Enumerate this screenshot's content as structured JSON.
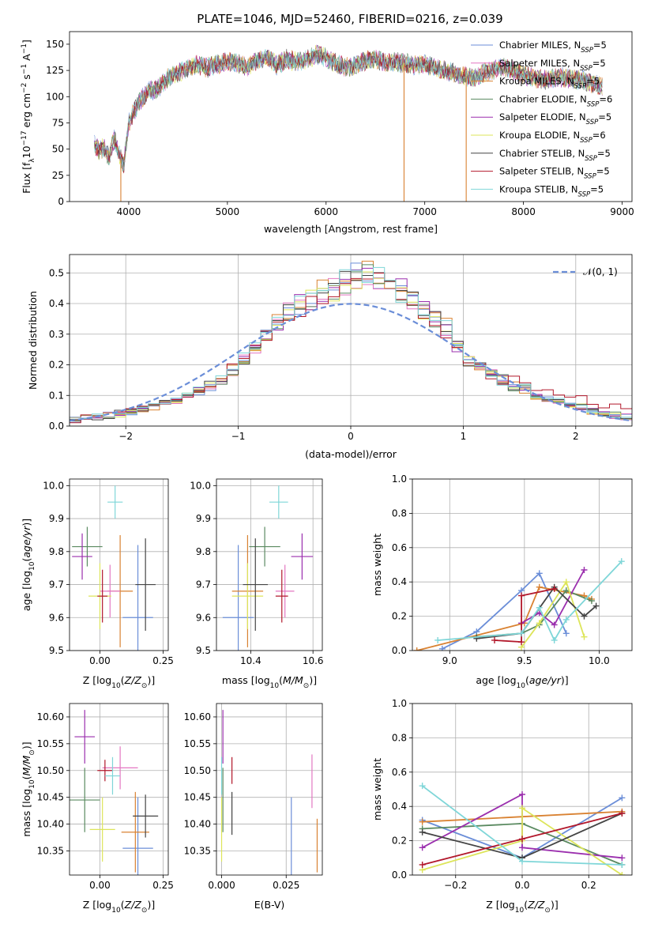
{
  "figure_title": "PLATE=1046, MJD=52460, FIBERID=0216, z=0.039",
  "legend": [
    {
      "name": "Chabrier MILES, N",
      "sub": "SSP",
      "tail": "=5",
      "color": "#6b8ed8"
    },
    {
      "name": "Salpeter MILES, N",
      "sub": "SSP",
      "tail": "=5",
      "color": "#e377c2"
    },
    {
      "name": "Kroupa MILES, N",
      "sub": "SSP",
      "tail": "=5",
      "color": "#d98232"
    },
    {
      "name": "Chabrier ELODIE, N",
      "sub": "SSP",
      "tail": "=6",
      "color": "#5a8a60"
    },
    {
      "name": "Salpeter ELODIE, N",
      "sub": "SSP",
      "tail": "=5",
      "color": "#9b2fae"
    },
    {
      "name": "Kroupa ELODIE, N",
      "sub": "SSP",
      "tail": "=6",
      "color": "#dde55a"
    },
    {
      "name": "Chabrier STELIB, N",
      "sub": "SSP",
      "tail": "=5",
      "color": "#444444"
    },
    {
      "name": "Salpeter STELIB, N",
      "sub": "SSP",
      "tail": "=5",
      "color": "#b2182b"
    },
    {
      "name": "Kroupa STELIB, N",
      "sub": "SSP",
      "tail": "=5",
      "color": "#7fd6d8"
    }
  ],
  "normal_label": "𝒩(0, 1)",
  "chart_data": [
    {
      "id": "spectrum",
      "type": "line",
      "xlabel": "wavelength [Angstrom, rest frame]",
      "ylabel_parts": [
        "Flux [f",
        "λ",
        "10",
        "−17",
        " erg cm",
        "−2",
        " s",
        "−1",
        " A",
        "−1",
        "]"
      ],
      "xlim": [
        3400,
        9100
      ],
      "ylim": [
        0,
        162
      ],
      "xticks": [
        4000,
        5000,
        6000,
        7000,
        8000,
        9000
      ],
      "yticks": [
        0,
        25,
        50,
        75,
        100,
        125,
        150
      ],
      "grid": false,
      "envelope": {
        "x": [
          3650,
          3700,
          3750,
          3800,
          3850,
          3900,
          3950,
          4000,
          4100,
          4200,
          4300,
          4400,
          4500,
          4600,
          4700,
          4800,
          4900,
          5000,
          5100,
          5200,
          5300,
          5400,
          5500,
          5600,
          5700,
          5800,
          5900,
          6000,
          6100,
          6200,
          6300,
          6400,
          6500,
          6600,
          6700,
          6800,
          6900,
          7000,
          7100,
          7200,
          7300,
          7400,
          7500,
          7600,
          7700,
          7800,
          7900,
          8000,
          8100,
          8200,
          8300,
          8400,
          8500,
          8600,
          8700,
          8800
        ],
        "y": [
          55,
          48,
          52,
          42,
          60,
          45,
          35,
          75,
          95,
          105,
          108,
          118,
          122,
          128,
          130,
          128,
          131,
          133,
          132,
          128,
          134,
          138,
          130,
          136,
          133,
          135,
          140,
          137,
          132,
          128,
          130,
          134,
          136,
          132,
          133,
          132,
          130,
          131,
          128,
          125,
          122,
          120,
          118,
          123,
          126,
          128,
          125,
          121,
          118,
          116,
          117,
          119,
          117,
          116,
          112,
          110
        ]
      },
      "dropouts": [
        {
          "x": 3920,
          "color": "#d98232"
        },
        {
          "x": 6790,
          "color": "#d98232"
        },
        {
          "x": 7420,
          "color": "#d98232"
        }
      ]
    },
    {
      "id": "residuals",
      "type": "histogram",
      "xlabel": "(data-model)/error",
      "ylabel": "Normed distribution",
      "xlim": [
        -2.5,
        2.5
      ],
      "ylim": [
        0,
        0.56
      ],
      "xticks": [
        -2,
        -1,
        0,
        1,
        2
      ],
      "yticks": [
        0.0,
        0.1,
        0.2,
        0.3,
        0.4,
        0.5
      ],
      "grid": true,
      "bins": [
        -2.5,
        -2.4,
        -2.3,
        -2.2,
        -2.1,
        -2.0,
        -1.9,
        -1.8,
        -1.7,
        -1.6,
        -1.5,
        -1.4,
        -1.3,
        -1.2,
        -1.1,
        -1.0,
        -0.9,
        -0.8,
        -0.7,
        -0.6,
        -0.5,
        -0.4,
        -0.3,
        -0.2,
        -0.1,
        0.0,
        0.1,
        0.2,
        0.3,
        0.4,
        0.5,
        0.6,
        0.7,
        0.8,
        0.9,
        1.0,
        1.1,
        1.2,
        1.3,
        1.4,
        1.5,
        1.6,
        1.7,
        1.8,
        1.9,
        2.0,
        2.1,
        2.2,
        2.3,
        2.4,
        2.5
      ],
      "base_values": [
        0.02,
        0.025,
        0.03,
        0.035,
        0.04,
        0.045,
        0.055,
        0.065,
        0.075,
        0.085,
        0.1,
        0.115,
        0.13,
        0.15,
        0.18,
        0.22,
        0.26,
        0.3,
        0.34,
        0.37,
        0.39,
        0.41,
        0.43,
        0.45,
        0.47,
        0.49,
        0.49,
        0.48,
        0.46,
        0.44,
        0.42,
        0.38,
        0.35,
        0.32,
        0.26,
        0.22,
        0.19,
        0.17,
        0.15,
        0.13,
        0.12,
        0.1,
        0.09,
        0.08,
        0.07,
        0.06,
        0.05,
        0.04,
        0.035,
        0.03
      ],
      "normal_curve": {
        "mean": 0,
        "sigma": 1,
        "color": "#6b8ed8"
      }
    },
    {
      "id": "age-vs-metallicity",
      "type": "errorbar",
      "xlabel": "Z [log10(Z/Z⊙)]",
      "ylabel": "age [log10(age/yr)]",
      "xlim": [
        -0.12,
        0.27
      ],
      "ylim": [
        9.5,
        10.02
      ],
      "xticks": [
        0.0,
        0.25
      ],
      "yticks": [
        9.5,
        9.6,
        9.7,
        9.8,
        9.9,
        10.0
      ],
      "grid": true,
      "points": [
        {
          "x": 0.15,
          "y": 9.6,
          "xerr": 0.06,
          "yerr": 0.22,
          "color": "#6b8ed8"
        },
        {
          "x": 0.08,
          "y": 9.68,
          "xerr": 0.05,
          "yerr": 0.17,
          "color": "#d98232"
        },
        {
          "x": 0.04,
          "y": 9.68,
          "xerr": 0.04,
          "yerr": 0.08,
          "color": "#e377c2"
        },
        {
          "x": -0.05,
          "y": 9.815,
          "xerr": 0.06,
          "yerr": 0.06,
          "color": "#5a8a60"
        },
        {
          "x": -0.07,
          "y": 9.785,
          "xerr": 0.04,
          "yerr": 0.07,
          "color": "#9b2fae"
        },
        {
          "x": 0.0,
          "y": 9.665,
          "xerr": 0.045,
          "yerr": 0.1,
          "color": "#dde55a"
        },
        {
          "x": 0.18,
          "y": 9.7,
          "xerr": 0.04,
          "yerr": 0.14,
          "color": "#444444"
        },
        {
          "x": 0.01,
          "y": 9.665,
          "xerr": 0.02,
          "yerr": 0.08,
          "color": "#b2182b"
        },
        {
          "x": 0.06,
          "y": 9.95,
          "xerr": 0.03,
          "yerr": 0.05,
          "color": "#7fd6d8"
        }
      ]
    },
    {
      "id": "age-vs-mass",
      "type": "errorbar",
      "xlabel": "mass [log10(M/M⊙)]",
      "ylabel": "",
      "xlim": [
        10.29,
        10.63
      ],
      "ylim": [
        9.5,
        10.02
      ],
      "xticks": [
        10.4,
        10.6
      ],
      "yticks": [
        9.5,
        9.6,
        9.7,
        9.8,
        9.9,
        10.0
      ],
      "grid": true,
      "points": [
        {
          "x": 10.36,
          "y": 9.6,
          "xerr": 0.05,
          "yerr": 0.22,
          "color": "#6b8ed8"
        },
        {
          "x": 10.39,
          "y": 9.68,
          "xerr": 0.05,
          "yerr": 0.17,
          "color": "#d98232"
        },
        {
          "x": 10.51,
          "y": 9.68,
          "xerr": 0.03,
          "yerr": 0.08,
          "color": "#e377c2"
        },
        {
          "x": 10.445,
          "y": 9.815,
          "xerr": 0.05,
          "yerr": 0.06,
          "color": "#5a8a60"
        },
        {
          "x": 10.565,
          "y": 9.785,
          "xerr": 0.035,
          "yerr": 0.07,
          "color": "#9b2fae"
        },
        {
          "x": 10.39,
          "y": 9.665,
          "xerr": 0.05,
          "yerr": 0.1,
          "color": "#dde55a"
        },
        {
          "x": 10.415,
          "y": 9.7,
          "xerr": 0.04,
          "yerr": 0.14,
          "color": "#444444"
        },
        {
          "x": 10.5,
          "y": 9.665,
          "xerr": 0.02,
          "yerr": 0.08,
          "color": "#b2182b"
        },
        {
          "x": 10.49,
          "y": 9.95,
          "xerr": 0.03,
          "yerr": 0.05,
          "color": "#7fd6d8"
        }
      ]
    },
    {
      "id": "mass-weight-vs-age",
      "type": "line",
      "xlabel": "age [log10(age/yr)]",
      "ylabel": "mass weight",
      "xlim": [
        8.75,
        10.22
      ],
      "ylim": [
        0,
        1.0
      ],
      "xticks": [
        9.0,
        9.5,
        10.0
      ],
      "yticks": [
        0.0,
        0.2,
        0.4,
        0.6,
        0.8,
        1.0
      ],
      "grid": true,
      "series": [
        {
          "color": "#6b8ed8",
          "x": [
            8.95,
            9.18,
            9.48,
            9.6,
            9.78
          ],
          "y": [
            0.01,
            0.11,
            0.35,
            0.45,
            0.1
          ]
        },
        {
          "color": "#d98232",
          "x": [
            8.78,
            9.5,
            9.6,
            9.9,
            9.95
          ],
          "y": [
            0.0,
            0.16,
            0.37,
            0.32,
            0.3
          ]
        },
        {
          "color": "#5a8a60",
          "x": [
            9.18,
            9.48,
            9.6,
            9.78,
            9.95
          ],
          "y": [
            0.08,
            0.1,
            0.15,
            0.35,
            0.29
          ]
        },
        {
          "color": "#9b2fae",
          "x": [
            9.48,
            9.6,
            9.7,
            9.9
          ],
          "y": [
            0.16,
            0.22,
            0.15,
            0.47
          ]
        },
        {
          "color": "#dde55a",
          "x": [
            9.48,
            9.6,
            9.78,
            9.9
          ],
          "y": [
            0.02,
            0.16,
            0.4,
            0.08
          ]
        },
        {
          "color": "#444444",
          "x": [
            9.18,
            9.48,
            9.7,
            9.9,
            9.98
          ],
          "y": [
            0.07,
            0.1,
            0.37,
            0.2,
            0.26
          ]
        },
        {
          "color": "#b2182b",
          "x": [
            9.3,
            9.48,
            9.48,
            9.7
          ],
          "y": [
            0.06,
            0.05,
            0.32,
            0.36
          ]
        },
        {
          "color": "#7fd6d8",
          "x": [
            8.92,
            9.48,
            9.6,
            9.7,
            9.78,
            10.15
          ],
          "y": [
            0.06,
            0.1,
            0.25,
            0.06,
            0.18,
            0.52
          ]
        }
      ]
    },
    {
      "id": "mass-vs-metallicity",
      "type": "errorbar",
      "xlabel": "Z [log10(Z/Z⊙)]",
      "ylabel": "mass [log10(M/M⊙)]",
      "xlim": [
        -0.12,
        0.27
      ],
      "ylim": [
        10.305,
        10.625
      ],
      "xticks": [
        0.0,
        0.25
      ],
      "yticks": [
        10.35,
        10.4,
        10.45,
        10.5,
        10.55,
        10.6
      ],
      "grid": true,
      "points": [
        {
          "x": 0.15,
          "y": 10.355,
          "xerr": 0.06,
          "yerr": 0.095,
          "color": "#6b8ed8"
        },
        {
          "x": 0.14,
          "y": 10.385,
          "xerr": 0.055,
          "yerr": 0.075,
          "color": "#d98232"
        },
        {
          "x": 0.08,
          "y": 10.505,
          "xerr": 0.07,
          "yerr": 0.04,
          "color": "#e377c2"
        },
        {
          "x": -0.06,
          "y": 10.445,
          "xerr": 0.06,
          "yerr": 0.06,
          "color": "#5a8a60"
        },
        {
          "x": -0.06,
          "y": 10.563,
          "xerr": 0.04,
          "yerr": 0.05,
          "color": "#9b2fae"
        },
        {
          "x": 0.01,
          "y": 10.39,
          "xerr": 0.05,
          "yerr": 0.06,
          "color": "#dde55a"
        },
        {
          "x": 0.18,
          "y": 10.415,
          "xerr": 0.05,
          "yerr": 0.04,
          "color": "#444444"
        },
        {
          "x": 0.02,
          "y": 10.5,
          "xerr": 0.03,
          "yerr": 0.02,
          "color": "#b2182b"
        },
        {
          "x": 0.05,
          "y": 10.49,
          "xerr": 0.03,
          "yerr": 0.035,
          "color": "#7fd6d8"
        }
      ]
    },
    {
      "id": "mass-vs-reddening",
      "type": "errorbar",
      "xlabel": "E(B-V)",
      "ylabel": "",
      "xlim": [
        -0.002,
        0.039
      ],
      "ylim": [
        10.305,
        10.625
      ],
      "xticks": [
        0.0,
        0.025
      ],
      "yticks": [
        10.35,
        10.4,
        10.45,
        10.5,
        10.55,
        10.6
      ],
      "grid": true,
      "points": [
        {
          "x": 0.027,
          "y": 10.355,
          "xerr": 0,
          "yerr": 0.095,
          "color": "#6b8ed8"
        },
        {
          "x": 0.037,
          "y": 10.36,
          "xerr": 0,
          "yerr": 0.05,
          "color": "#d98232"
        },
        {
          "x": 0.035,
          "y": 10.48,
          "xerr": 0,
          "yerr": 0.05,
          "color": "#e377c2"
        },
        {
          "x": 0.0005,
          "y": 10.445,
          "xerr": 0,
          "yerr": 0.06,
          "color": "#5a8a60"
        },
        {
          "x": 0.0005,
          "y": 10.563,
          "xerr": 0,
          "yerr": 0.05,
          "color": "#9b2fae"
        },
        {
          "x": 0.0,
          "y": 10.39,
          "xerr": 0,
          "yerr": 0.06,
          "color": "#dde55a"
        },
        {
          "x": 0.004,
          "y": 10.42,
          "xerr": 0,
          "yerr": 0.04,
          "color": "#444444"
        },
        {
          "x": 0.004,
          "y": 10.5,
          "xerr": 0,
          "yerr": 0.025,
          "color": "#b2182b"
        },
        {
          "x": 0.0,
          "y": 10.49,
          "xerr": 0,
          "yerr": 0.035,
          "color": "#7fd6d8"
        }
      ]
    },
    {
      "id": "mass-weight-vs-metallicity",
      "type": "line",
      "xlabel": "Z [log10(Z/Z⊙)]",
      "ylabel": "mass weight",
      "xlim": [
        -0.33,
        0.33
      ],
      "ylim": [
        0,
        1.0
      ],
      "xticks": [
        -0.2,
        0.0,
        0.2
      ],
      "yticks": [
        0.0,
        0.2,
        0.4,
        0.6,
        0.8,
        1.0
      ],
      "grid": true,
      "series": [
        {
          "color": "#6b8ed8",
          "x": [
            -0.3,
            0.0,
            0.3
          ],
          "y": [
            0.32,
            0.1,
            0.45
          ]
        },
        {
          "color": "#d98232",
          "x": [
            -0.3,
            0.0,
            0.3
          ],
          "y": [
            0.31,
            0.34,
            0.37
          ]
        },
        {
          "color": "#5a8a60",
          "x": [
            -0.3,
            0.0,
            0.3
          ],
          "y": [
            0.27,
            0.3,
            0.06
          ]
        },
        {
          "color": "#9b2fae",
          "x": [
            -0.3,
            0.0,
            0.0,
            0.3
          ],
          "y": [
            0.16,
            0.47,
            0.16,
            0.1
          ]
        },
        {
          "color": "#dde55a",
          "x": [
            -0.3,
            0.0,
            0.0,
            0.3
          ],
          "y": [
            0.03,
            0.2,
            0.39,
            0.0
          ]
        },
        {
          "color": "#444444",
          "x": [
            -0.3,
            0.0,
            0.3
          ],
          "y": [
            0.25,
            0.1,
            0.36
          ]
        },
        {
          "color": "#b2182b",
          "x": [
            -0.3,
            0.0,
            0.3
          ],
          "y": [
            0.06,
            0.21,
            0.36
          ]
        },
        {
          "color": "#7fd6d8",
          "x": [
            -0.3,
            0.0,
            0.3
          ],
          "y": [
            0.52,
            0.08,
            0.06
          ]
        }
      ]
    }
  ]
}
